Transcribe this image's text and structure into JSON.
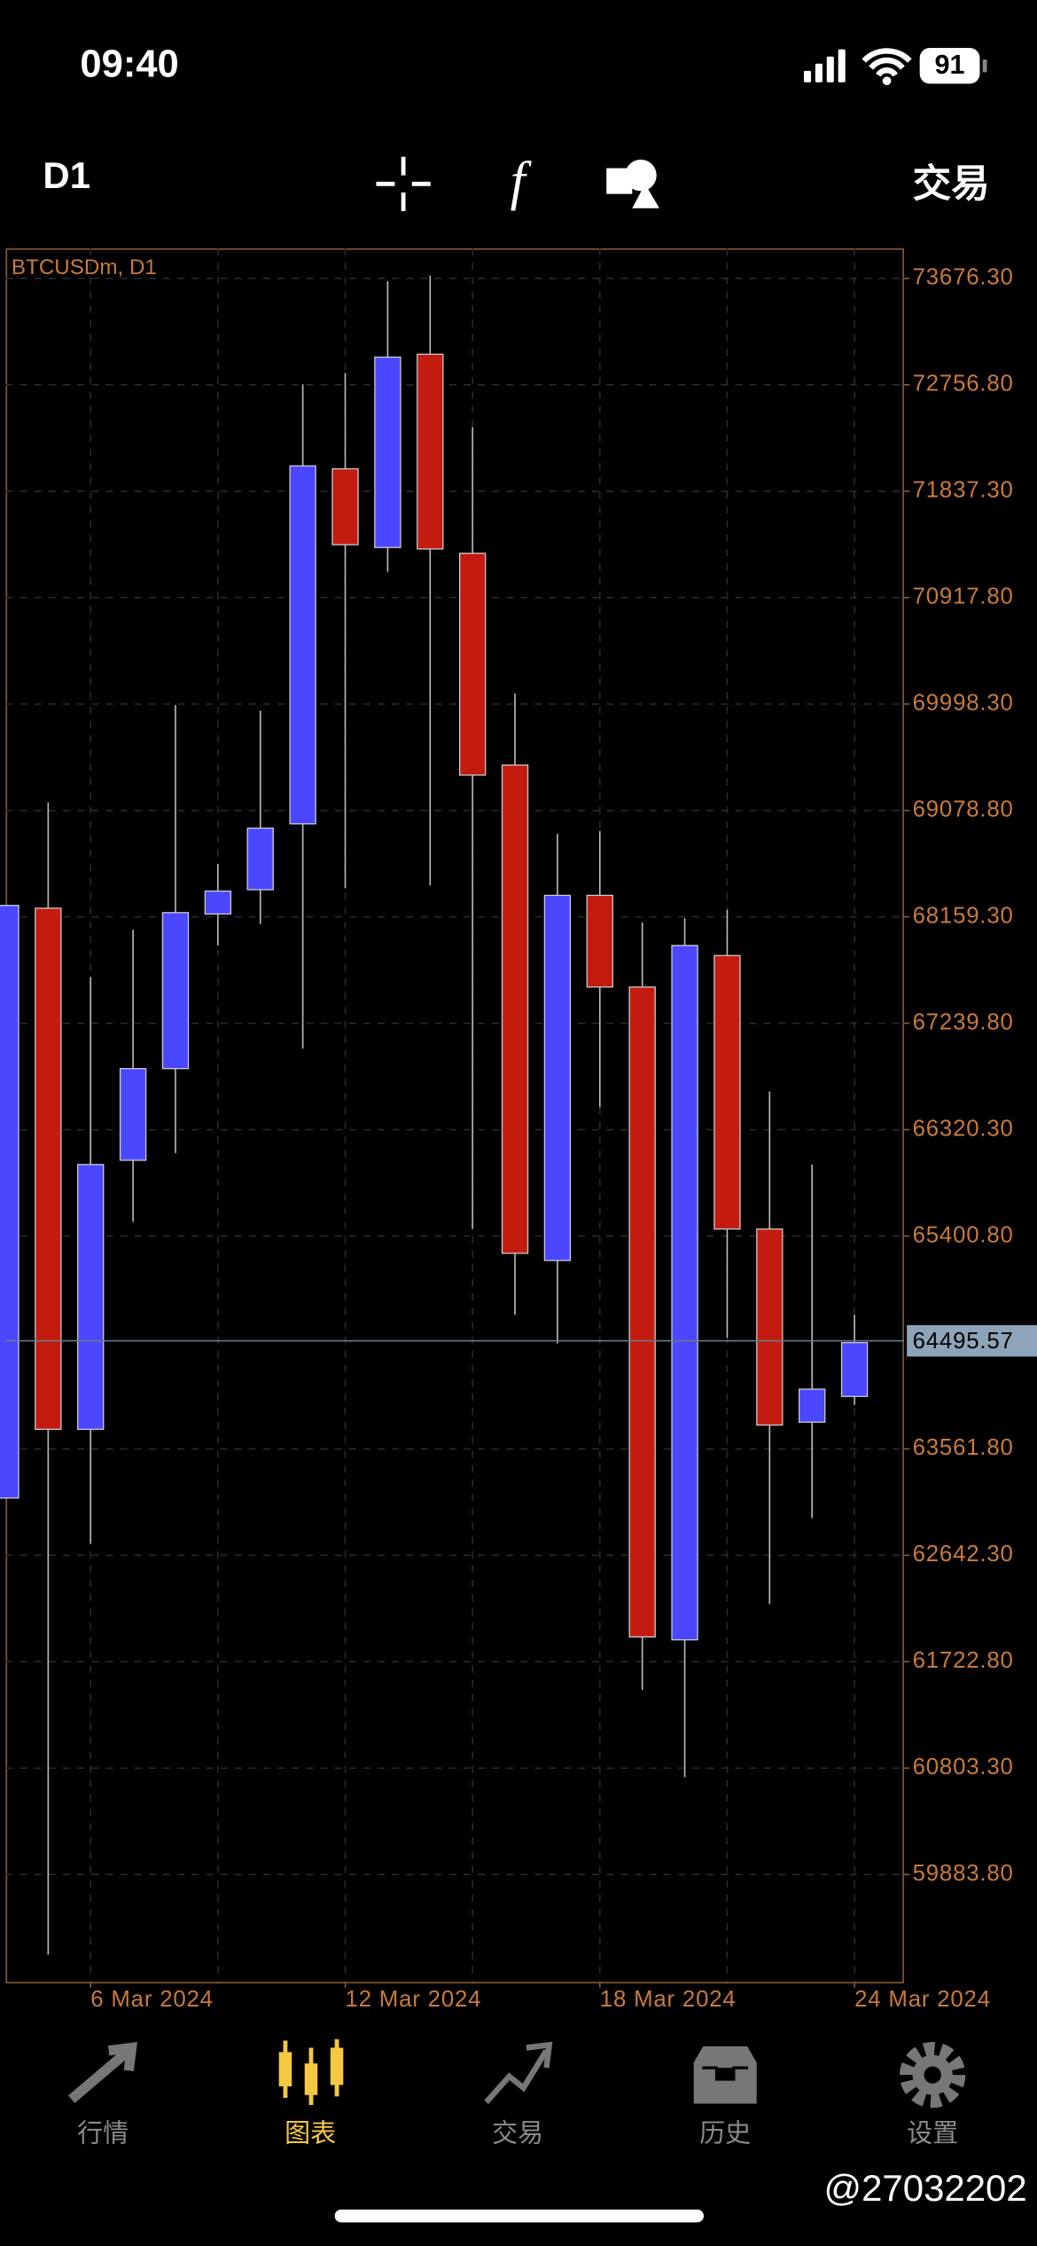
{
  "status_bar": {
    "time": "09:40",
    "battery": "91"
  },
  "toolbar": {
    "timeframe": "D1",
    "trade": "交易"
  },
  "chart_data": {
    "type": "candlestick",
    "title": "BTCUSDm, D1",
    "categories": [
      null,
      null,
      "6 Mar 2024",
      null,
      null,
      null,
      null,
      null,
      "12 Mar 2024",
      null,
      null,
      null,
      null,
      null,
      "18 Mar 2024",
      null,
      null,
      null,
      null,
      null,
      "24 Mar 2024"
    ],
    "open": [
      63137,
      68234,
      63731,
      66056,
      66848,
      68184,
      68394,
      68963,
      72031,
      71351,
      73021,
      71301,
      69471,
      65190,
      68345,
      67553,
      61912,
      67825,
      65462,
      63793,
      64015
    ],
    "high": [
      68258,
      69149,
      67640,
      68048,
      69990,
      68617,
      69941,
      72761,
      72860,
      73652,
      73701,
      72390,
      70089,
      68877,
      68902,
      68110,
      68147,
      68221,
      66650,
      66019,
      64720
    ],
    "low": [
      63137,
      59191,
      62741,
      65524,
      66118,
      67912,
      68097,
      67021,
      68407,
      71141,
      68431,
      65462,
      64720,
      64473,
      66514,
      61480,
      60725,
      64522,
      62222,
      62964,
      63941
    ],
    "close": [
      68258,
      63731,
      66019,
      66848,
      68196,
      68382,
      68926,
      72056,
      71375,
      72996,
      71338,
      69384,
      65252,
      68345,
      67553,
      61937,
      67912,
      65462,
      63768,
      64078,
      64480
    ],
    "up_color": "#4b46ff",
    "down_color": "#c41b10",
    "ylim": [
      58956,
      73936
    ],
    "yticks": [
      {
        "value": 73676.3,
        "label": "73676.30"
      },
      {
        "value": 72756.8,
        "label": "72756.80"
      },
      {
        "value": 71837.3,
        "label": "71837.30"
      },
      {
        "value": 70917.8,
        "label": "70917.80"
      },
      {
        "value": 69998.3,
        "label": "69998.30"
      },
      {
        "value": 69078.8,
        "label": "69078.80"
      },
      {
        "value": 68159.3,
        "label": "68159.30"
      },
      {
        "value": 67239.8,
        "label": "67239.80"
      },
      {
        "value": 66320.3,
        "label": "66320.30"
      },
      {
        "value": 65400.8,
        "label": "65400.80"
      },
      {
        "value": 63561.8,
        "label": "63561.80"
      },
      {
        "value": 62642.3,
        "label": "62642.30"
      },
      {
        "value": 61722.8,
        "label": "61722.80"
      },
      {
        "value": 60803.3,
        "label": "60803.30"
      },
      {
        "value": 59883.8,
        "label": "59883.80"
      }
    ],
    "current_price": {
      "value": 64495.57,
      "label": "64495.57"
    },
    "grid": true
  },
  "tab_bar": {
    "tabs": [
      "行情",
      "图表",
      "交易",
      "历史",
      "设置"
    ],
    "active": 1
  },
  "watermark": "@27032202"
}
